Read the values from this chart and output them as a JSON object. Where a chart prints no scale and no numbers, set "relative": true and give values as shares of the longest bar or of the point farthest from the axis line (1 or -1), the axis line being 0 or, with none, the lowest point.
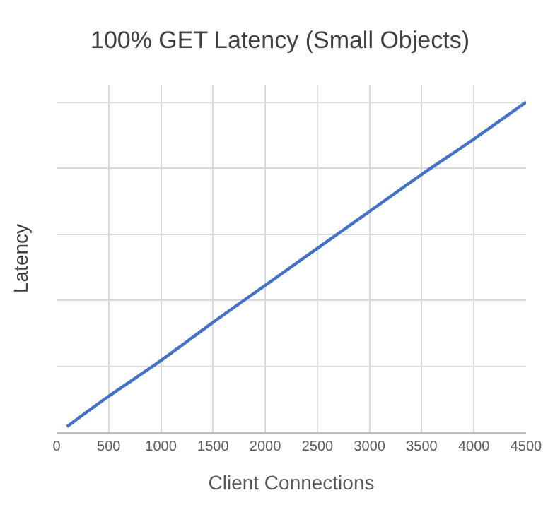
{
  "chart_data": {
    "type": "line",
    "title": "100% GET Latency (Small Objects)",
    "xlabel": "Client Connections",
    "ylabel": "Latency",
    "relative": true,
    "x": [
      100,
      500,
      1000,
      1500,
      2000,
      2500,
      3000,
      3500,
      4000,
      4500
    ],
    "series": [
      {
        "color": "#4472c4",
        "values": [
          0.017,
          0.109,
          0.217,
          0.333,
          0.445,
          0.557,
          0.669,
          0.781,
          0.888,
          1
        ]
      }
    ],
    "xlim": [
      0,
      4500
    ],
    "xticks": [
      0,
      500,
      1000,
      1500,
      2000,
      2500,
      3000,
      3500,
      4000,
      4500
    ],
    "grid": true,
    "legend": false,
    "marker": "none",
    "line_style": "solid"
  }
}
